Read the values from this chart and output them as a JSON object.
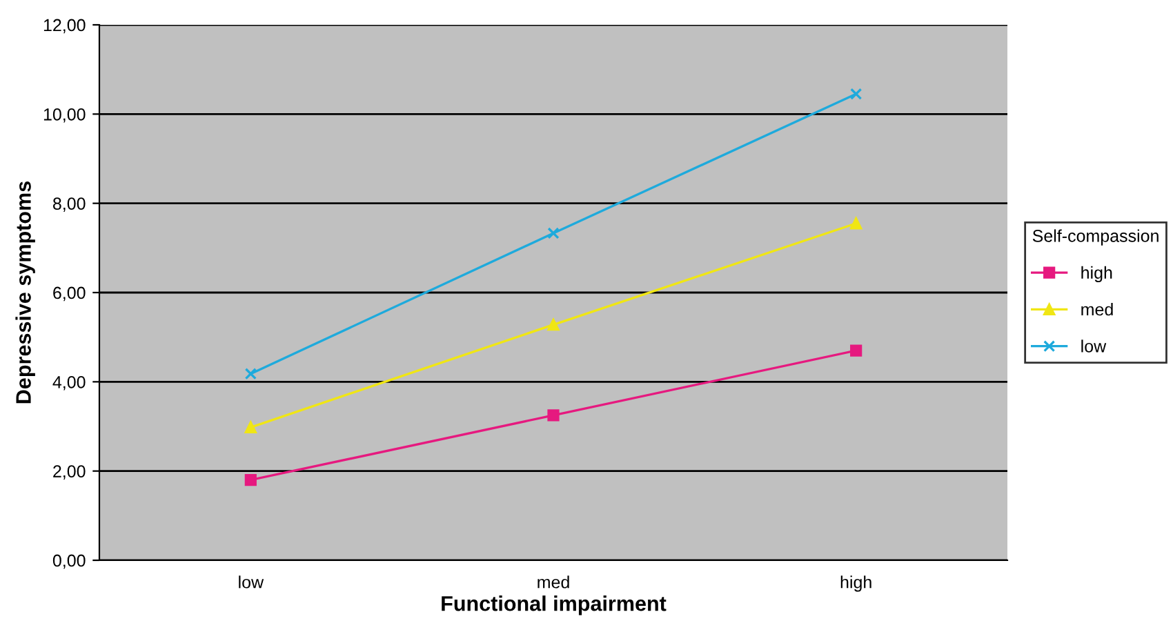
{
  "chart_data": {
    "type": "line",
    "xlabel": "Functional impairment",
    "ylabel": "Depressive symptoms",
    "legend_title": "Self-compassion",
    "categories": [
      "low",
      "med",
      "high"
    ],
    "series": [
      {
        "name": "high",
        "color": "#e6197f",
        "marker": "square",
        "values": [
          1.8,
          3.25,
          4.7
        ]
      },
      {
        "name": "med",
        "color": "#f0e614",
        "marker": "triangle",
        "values": [
          2.98,
          5.28,
          7.55
        ]
      },
      {
        "name": "low",
        "color": "#1eaadc",
        "marker": "cross",
        "values": [
          4.18,
          7.33,
          10.45
        ]
      }
    ],
    "ylim": [
      0,
      12
    ],
    "yticks": [
      {
        "value": 0,
        "label": "0,00"
      },
      {
        "value": 2,
        "label": "2,00"
      },
      {
        "value": 4,
        "label": "4,00"
      },
      {
        "value": 6,
        "label": "6,00"
      },
      {
        "value": 8,
        "label": "8,00"
      },
      {
        "value": 10,
        "label": "10,00"
      },
      {
        "value": 12,
        "label": "12,00"
      }
    ],
    "grid": "y",
    "legend": "right"
  }
}
